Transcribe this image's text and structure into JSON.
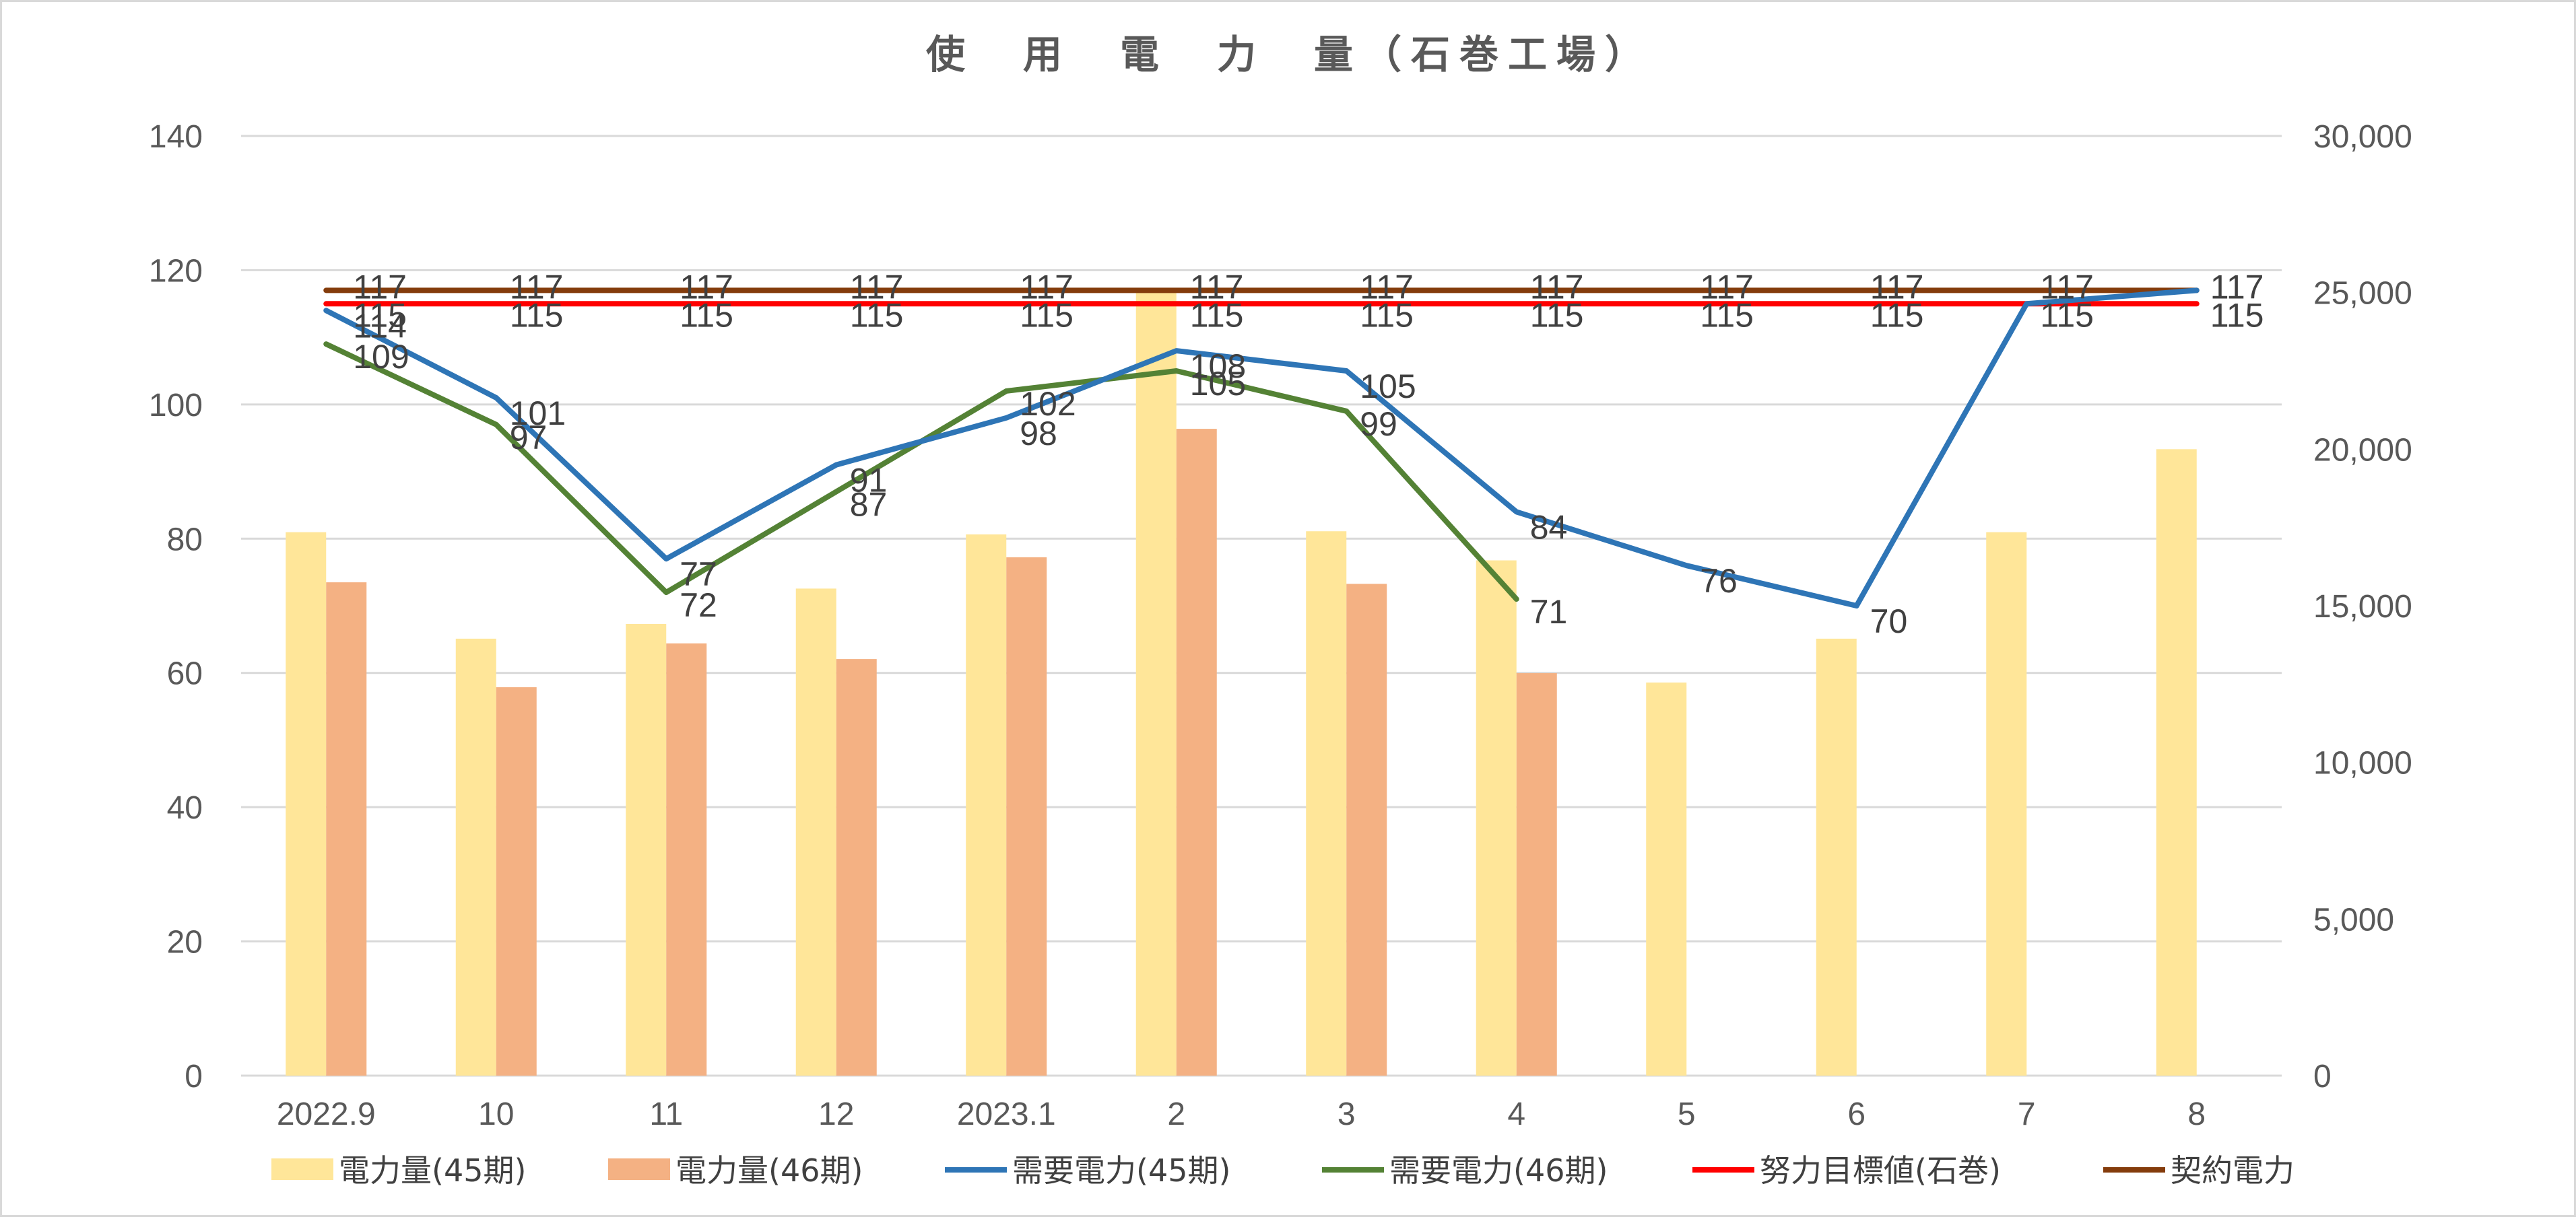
{
  "chart_data": {
    "type": "bar",
    "title": "使　用　電　力　量（石巻工場）",
    "categories": [
      "2022.9",
      "10",
      "11",
      "12",
      "2023.1",
      "2",
      "3",
      "4",
      "5",
      "6",
      "7",
      "8"
    ],
    "y_left": {
      "min": 0,
      "max": 140,
      "step": 20,
      "ticks": [
        "0",
        "20",
        "40",
        "60",
        "80",
        "100",
        "120",
        "140"
      ]
    },
    "y_right": {
      "min": 0,
      "max": 30000,
      "step": 5000,
      "ticks": [
        "0",
        "5,000",
        "10,000",
        "15,000",
        "20,000",
        "25,000",
        "30,000"
      ]
    },
    "grid": true,
    "legend_position": "bottom",
    "bar_series": [
      {
        "name": "電力量(45期)",
        "axis": "right",
        "color": "#ffe699",
        "values": [
          17350,
          13950,
          14420,
          15550,
          17280,
          25100,
          17380,
          16450,
          12550,
          13950,
          17350,
          20000
        ]
      },
      {
        "name": "電力量(46期)",
        "axis": "right",
        "color": "#f4b183",
        "values": [
          15750,
          12400,
          13800,
          13300,
          16550,
          20650,
          15700,
          12850,
          null,
          null,
          null,
          null
        ]
      }
    ],
    "line_series": [
      {
        "name": "需要電力(45期)",
        "axis": "left",
        "color": "#2e75b6",
        "values": [
          114,
          101,
          77,
          91,
          98,
          108,
          105,
          84,
          76,
          70,
          115,
          117
        ],
        "labels": [
          "114",
          "101",
          "77",
          "91",
          "98",
          "108",
          "105",
          "84",
          "76",
          "70",
          "",
          ""
        ]
      },
      {
        "name": "需要電力(46期)",
        "axis": "left",
        "color": "#548235",
        "values": [
          109,
          97,
          72,
          87,
          102,
          105,
          99,
          71,
          null,
          null,
          null,
          null
        ],
        "labels": [
          "109",
          "97",
          "72",
          "87",
          "102",
          "105",
          "99",
          "71",
          "",
          "",
          "",
          ""
        ]
      },
      {
        "name": "努力目標値(石巻)",
        "axis": "left",
        "color": "#ff0000",
        "values": [
          115,
          115,
          115,
          115,
          115,
          115,
          115,
          115,
          115,
          115,
          115,
          115
        ],
        "labels": [
          "115",
          "115",
          "115",
          "115",
          "115",
          "115",
          "115",
          "115",
          "115",
          "115",
          "115",
          "115"
        ]
      },
      {
        "name": "契約電力",
        "axis": "left",
        "color": "#843c0c",
        "values": [
          117,
          117,
          117,
          117,
          117,
          117,
          117,
          117,
          117,
          117,
          117,
          117
        ],
        "labels": [
          "117",
          "117",
          "117",
          "117",
          "117",
          "117",
          "117",
          "117",
          "117",
          "117",
          "117",
          "117"
        ]
      }
    ]
  }
}
